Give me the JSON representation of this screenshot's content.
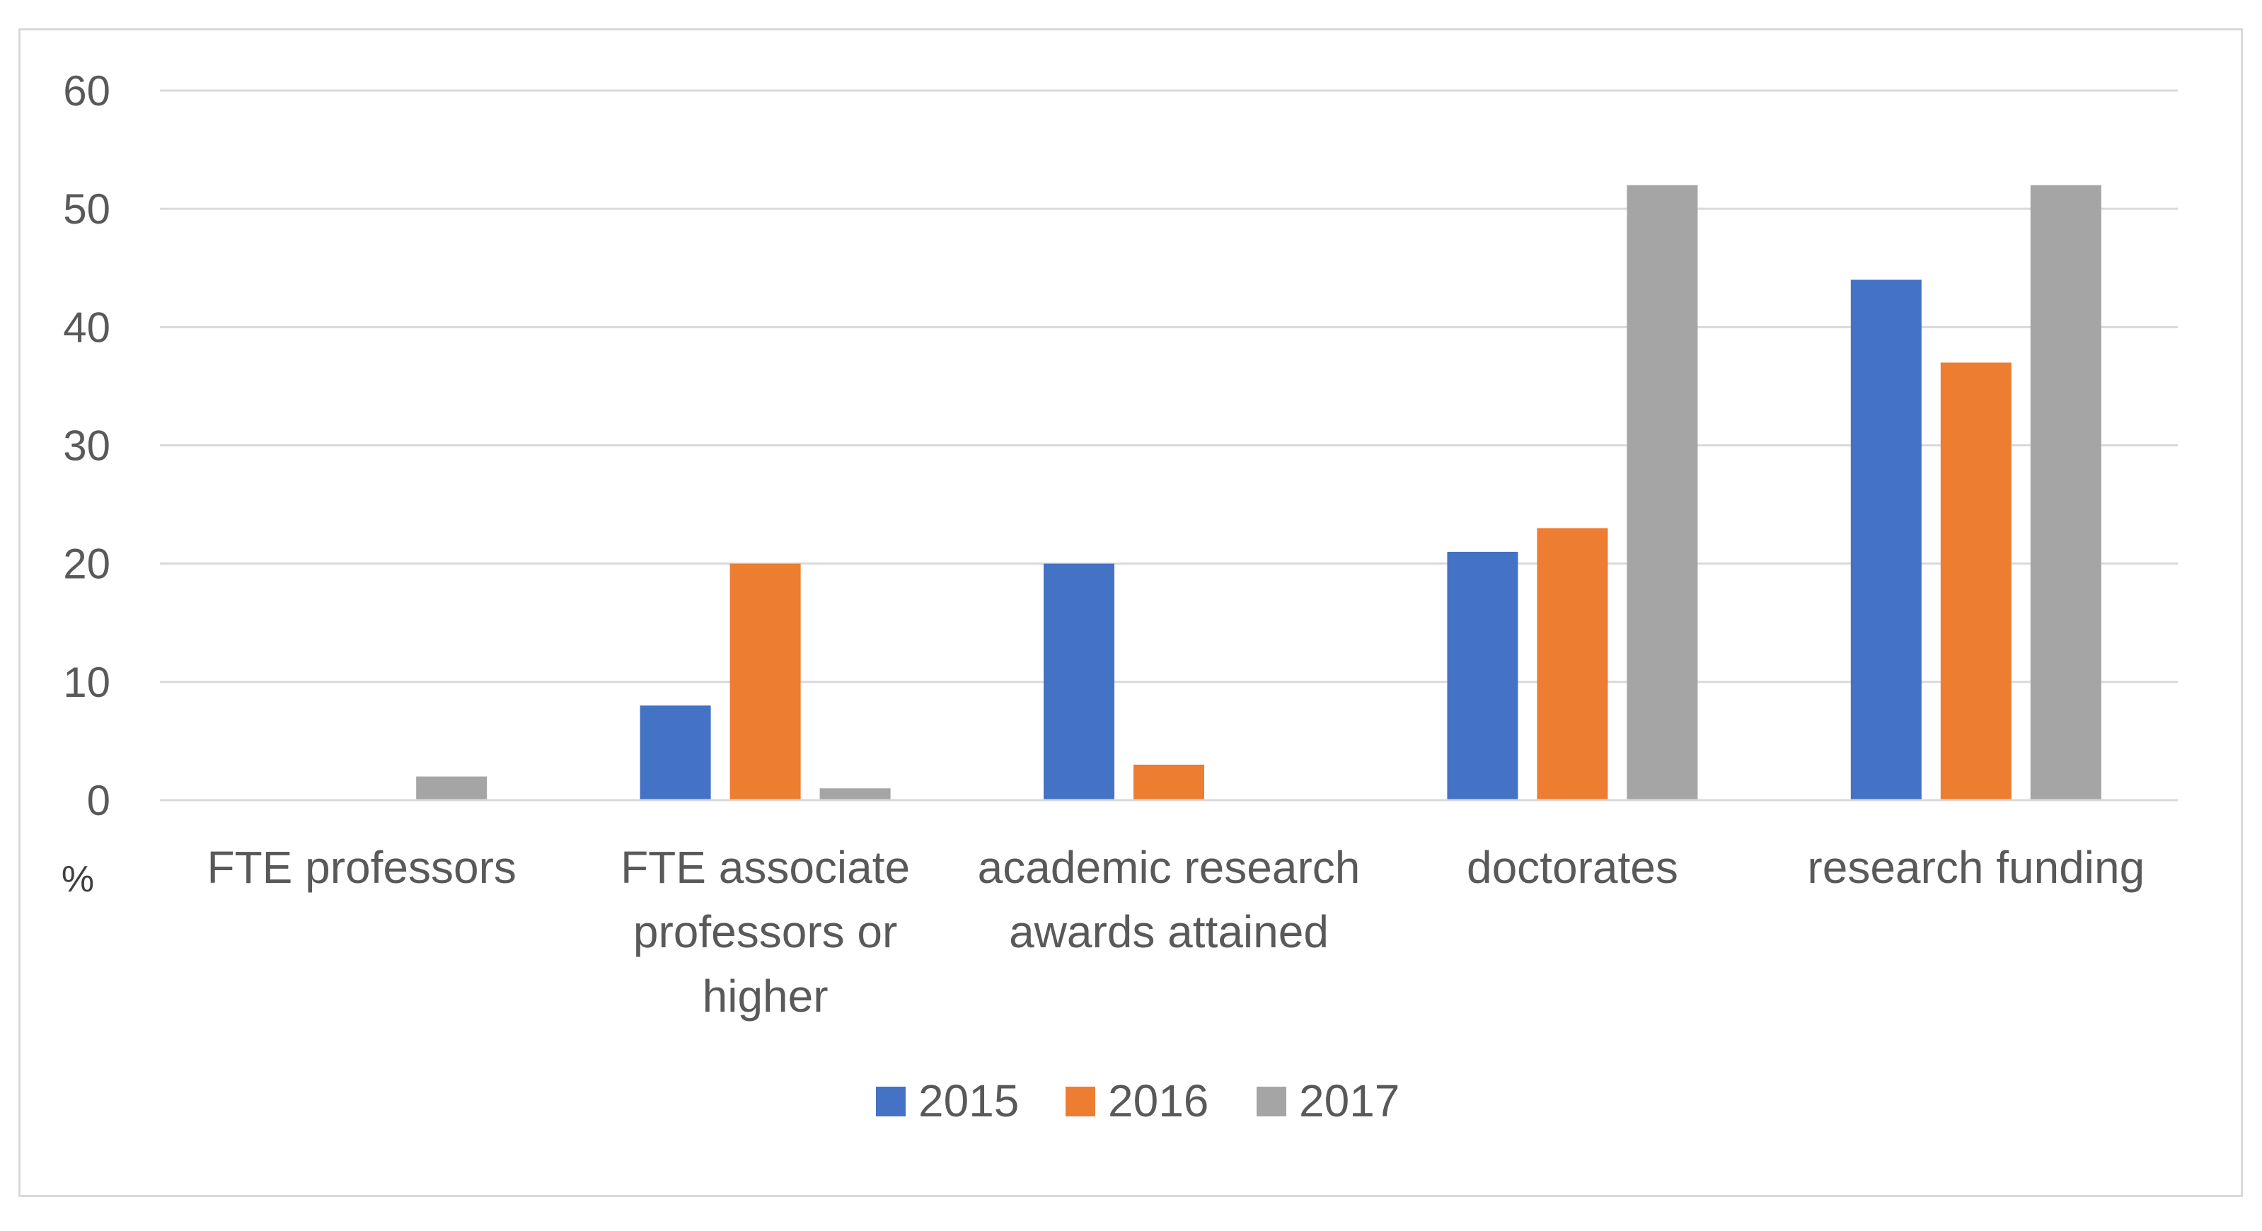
{
  "chart_data": {
    "type": "bar",
    "title": "",
    "xlabel": "",
    "ylabel": "",
    "unit_label": "%",
    "ylim": [
      0,
      60
    ],
    "yticks": [
      0,
      10,
      20,
      30,
      40,
      50,
      60
    ],
    "grid": true,
    "legend_position": "bottom",
    "categories": [
      [
        "FTE professors"
      ],
      [
        "FTE associate",
        "professors or",
        "higher"
      ],
      [
        "academic research",
        "awards attained"
      ],
      [
        "doctorates"
      ],
      [
        "research funding"
      ]
    ],
    "series": [
      {
        "name": "2015",
        "color": "#4472c4",
        "values": [
          0,
          8,
          20,
          21,
          44
        ]
      },
      {
        "name": "2016",
        "color": "#ed7d31",
        "values": [
          0,
          20,
          3,
          23,
          37
        ]
      },
      {
        "name": "2017",
        "color": "#a5a5a5",
        "values": [
          2,
          1,
          0,
          52,
          52
        ]
      }
    ],
    "gridline_color": "#d9d9d9",
    "axis_color": "#d9d9d9"
  }
}
